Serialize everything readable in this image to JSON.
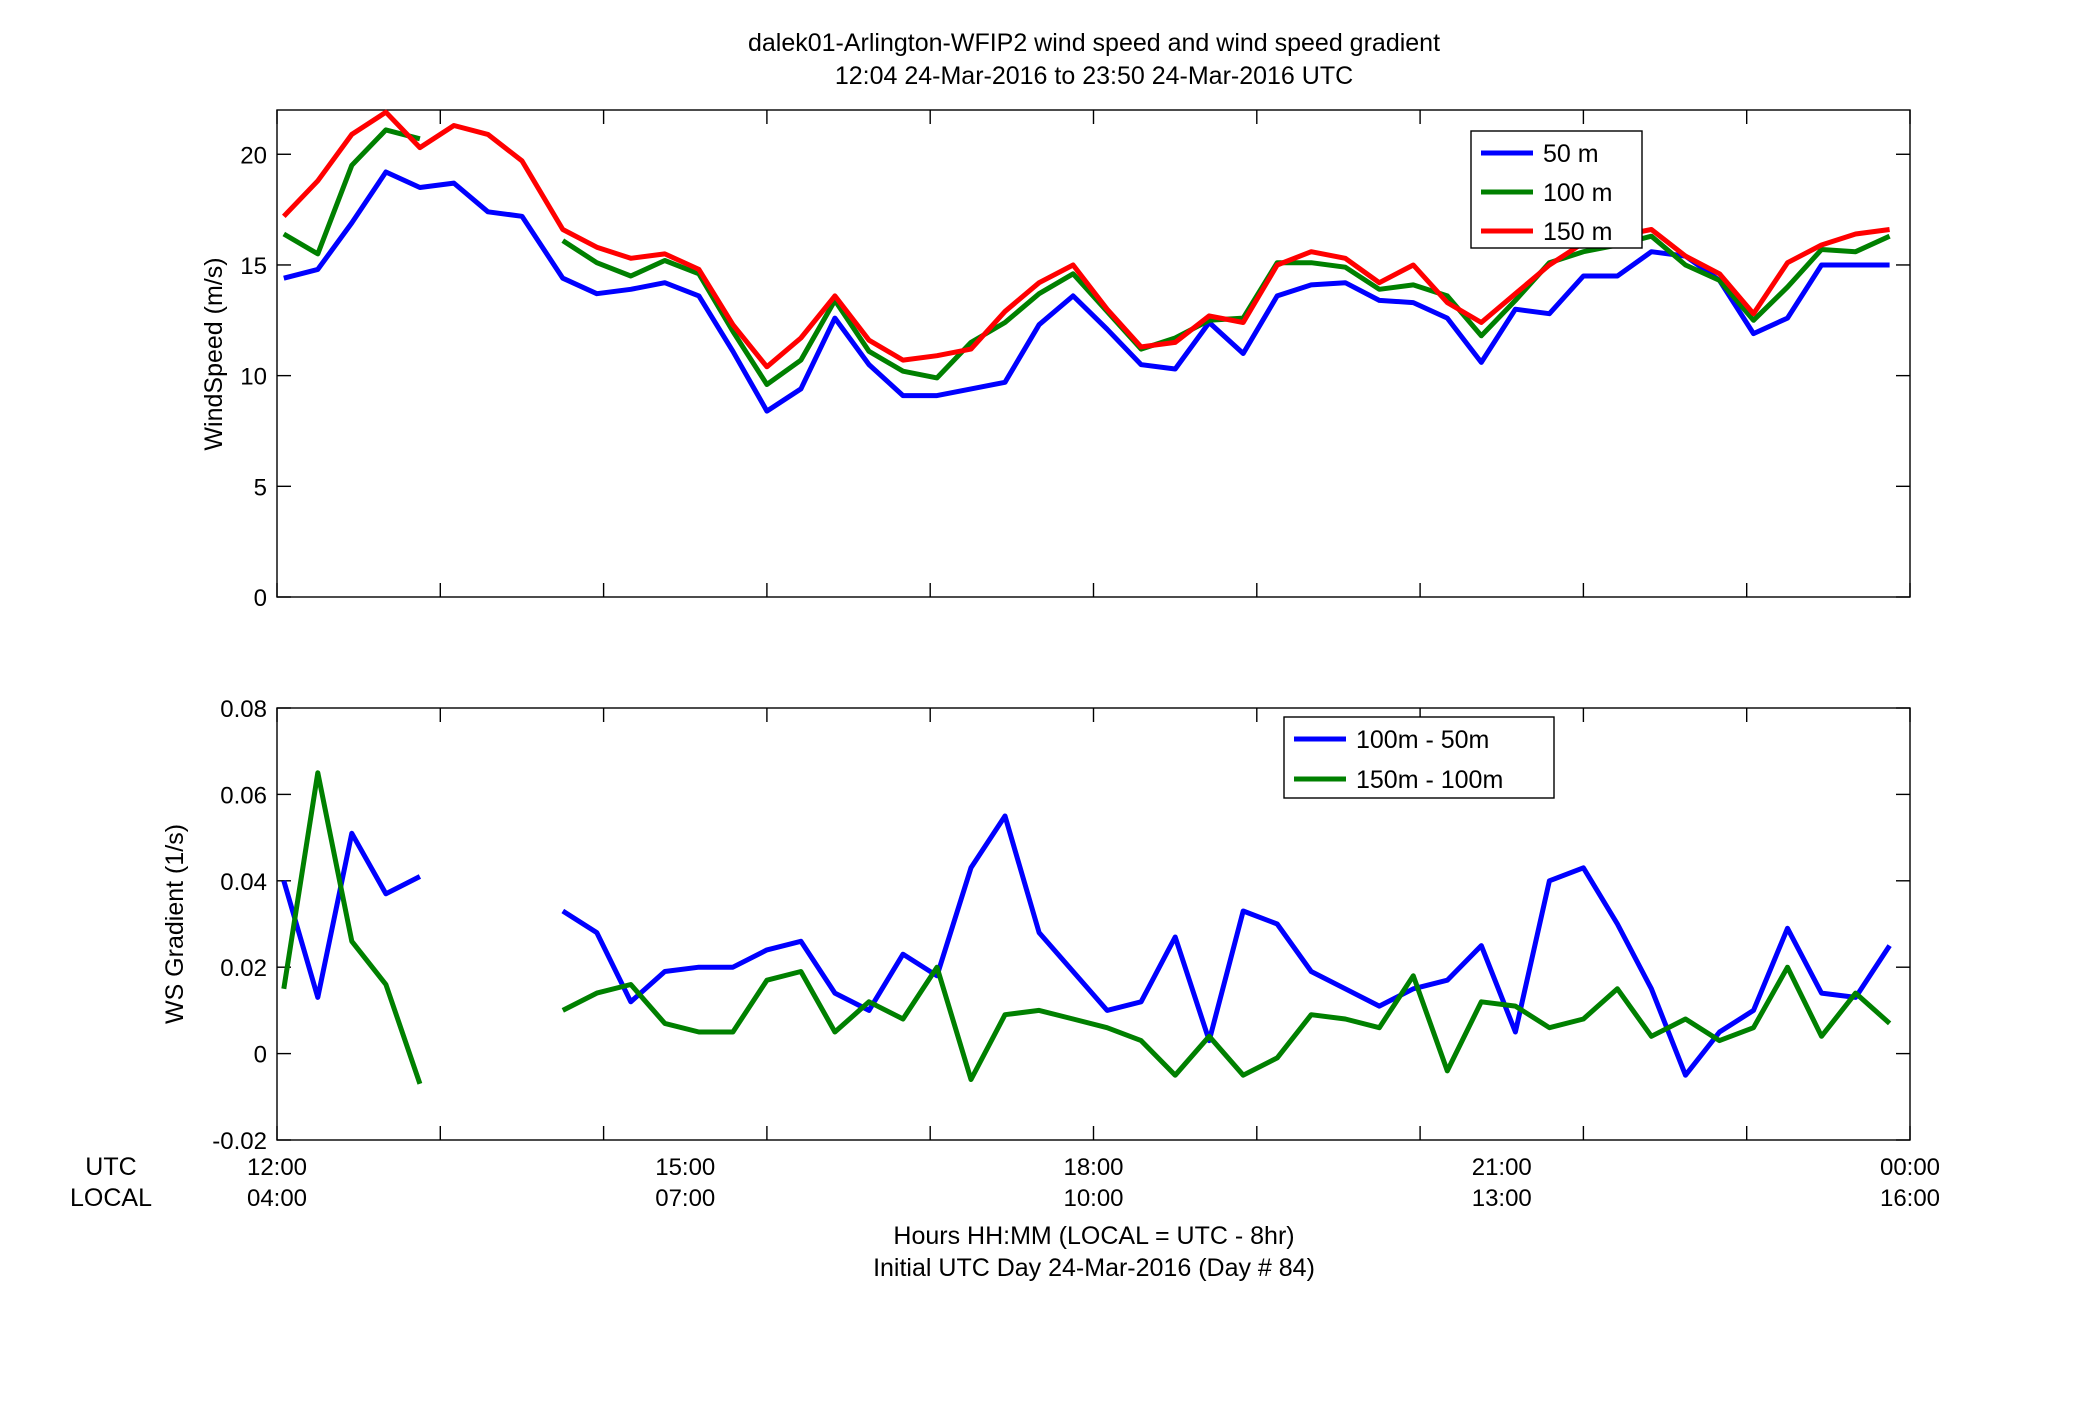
{
  "figure": {
    "title_line1": "dalek01-Arlington-WFIP2  wind speed and wind speed gradient",
    "title_line2": "12:04 24-Mar-2016 to 23:50 24-Mar-2016  UTC",
    "row_label_utc": "UTC",
    "row_label_local": "LOCAL",
    "xlabel_line1": "Hours HH:MM  (LOCAL = UTC - 8hr)",
    "xlabel_line2": "Initial UTC Day 24-Mar-2016 (Day # 84)",
    "utc_ticks": [
      "12:00",
      "15:00",
      "18:00",
      "21:00",
      "00:00"
    ],
    "local_ticks": [
      "04:00",
      "07:00",
      "10:00",
      "13:00",
      "16:00"
    ]
  },
  "chart_data": [
    {
      "type": "line",
      "ylabel": "WindSpeed (m/s)",
      "xlim": [
        12.0,
        24.0
      ],
      "ylim": [
        0,
        22
      ],
      "yticks": [
        0,
        5,
        10,
        15,
        20
      ],
      "ytick_labels": [
        "0",
        "5",
        "10",
        "15",
        "20"
      ],
      "xticks": [
        12,
        13.2,
        14.4,
        15.6,
        16.8,
        18,
        19.2,
        20.4,
        21.6,
        22.8,
        24
      ],
      "legend_position": "top-right",
      "x": [
        12.05,
        12.3,
        12.55,
        12.8,
        13.05,
        13.3,
        13.55,
        13.8,
        14.1,
        14.35,
        14.6,
        14.85,
        15.1,
        15.35,
        15.6,
        15.85,
        16.1,
        16.35,
        16.6,
        16.85,
        17.1,
        17.35,
        17.6,
        17.85,
        18.1,
        18.35,
        18.6,
        18.85,
        19.1,
        19.35,
        19.6,
        19.85,
        20.1,
        20.35,
        20.6,
        20.85,
        21.1,
        21.35,
        21.6,
        21.85,
        22.1,
        22.35,
        22.6,
        22.85,
        23.1,
        23.35,
        23.6,
        23.85
      ],
      "series": [
        {
          "name": "50 m",
          "color": "#0000ff",
          "values": [
            14.4,
            14.8,
            16.9,
            19.2,
            18.5,
            18.7,
            17.4,
            17.2,
            14.4,
            13.7,
            13.9,
            14.2,
            13.6,
            11.1,
            8.4,
            9.4,
            12.6,
            10.5,
            9.1,
            9.1,
            9.4,
            9.7,
            12.3,
            13.6,
            12.1,
            10.5,
            10.3,
            12.4,
            11.0,
            13.6,
            14.1,
            14.2,
            13.4,
            13.3,
            12.6,
            10.6,
            13.0,
            12.8,
            14.5,
            14.5,
            15.6,
            15.4,
            14.3,
            11.9,
            12.6,
            15.0,
            15.0,
            15.0
          ]
        },
        {
          "name": "100 m",
          "color": "#008000",
          "values": [
            16.4,
            15.5,
            19.5,
            21.1,
            20.7,
            null,
            null,
            null,
            16.1,
            15.1,
            14.5,
            15.2,
            14.6,
            12.0,
            9.6,
            10.7,
            13.4,
            11.1,
            10.2,
            9.9,
            11.5,
            12.4,
            13.7,
            14.6,
            12.9,
            11.2,
            11.7,
            12.5,
            12.6,
            15.1,
            15.1,
            14.9,
            13.9,
            14.1,
            13.6,
            11.8,
            13.4,
            15.1,
            15.6,
            15.9,
            16.3,
            15.0,
            14.3,
            12.5,
            14.0,
            15.7,
            15.6,
            16.3
          ]
        },
        {
          "name": "150 m",
          "color": "#ff0000",
          "values": [
            17.2,
            18.8,
            20.9,
            21.9,
            20.3,
            21.3,
            20.9,
            19.7,
            16.6,
            15.8,
            15.3,
            15.5,
            14.8,
            12.3,
            10.4,
            11.7,
            13.6,
            11.6,
            10.7,
            10.9,
            11.2,
            12.9,
            14.2,
            15.0,
            13.0,
            11.3,
            11.5,
            12.7,
            12.4,
            15.0,
            15.6,
            15.3,
            14.2,
            15.0,
            13.3,
            12.4,
            13.7,
            15.0,
            16.0,
            16.3,
            16.6,
            15.4,
            14.6,
            12.8,
            15.1,
            15.9,
            16.4,
            16.6
          ]
        }
      ]
    },
    {
      "type": "line",
      "ylabel": "WS Gradient (1/s)",
      "xlim": [
        12.0,
        24.0
      ],
      "ylim": [
        -0.02,
        0.08
      ],
      "yticks": [
        -0.02,
        0,
        0.02,
        0.04,
        0.06,
        0.08
      ],
      "ytick_labels": [
        "-0.02",
        "0",
        "0.02",
        "0.04",
        "0.06",
        "0.08"
      ],
      "xticks": [
        12,
        13.2,
        14.4,
        15.6,
        16.8,
        18,
        19.2,
        20.4,
        21.6,
        22.8,
        24
      ],
      "legend_position": "top-right",
      "x": [
        12.05,
        12.3,
        12.55,
        12.8,
        13.05,
        13.3,
        13.55,
        13.8,
        14.1,
        14.35,
        14.6,
        14.85,
        15.1,
        15.35,
        15.6,
        15.85,
        16.1,
        16.35,
        16.6,
        16.85,
        17.1,
        17.35,
        17.6,
        17.85,
        18.1,
        18.35,
        18.6,
        18.85,
        19.1,
        19.35,
        19.6,
        19.85,
        20.1,
        20.35,
        20.6,
        20.85,
        21.1,
        21.35,
        21.6,
        21.85,
        22.1,
        22.35,
        22.6,
        22.85,
        23.1,
        23.35,
        23.6,
        23.85
      ],
      "series": [
        {
          "name": "100m - 50m",
          "color": "#0000ff",
          "values": [
            0.04,
            0.013,
            0.051,
            0.037,
            0.041,
            null,
            null,
            null,
            0.033,
            0.028,
            0.012,
            0.019,
            0.02,
            0.02,
            0.024,
            0.026,
            0.014,
            0.01,
            0.023,
            0.018,
            0.043,
            0.055,
            0.028,
            0.019,
            0.01,
            0.012,
            0.027,
            0.003,
            0.033,
            0.03,
            0.019,
            0.015,
            0.011,
            0.015,
            0.017,
            0.025,
            0.005,
            0.04,
            0.043,
            0.03,
            0.015,
            -0.005,
            0.005,
            0.01,
            0.029,
            0.014,
            0.013,
            0.025
          ]
        },
        {
          "name": "150m - 100m",
          "color": "#008000",
          "values": [
            0.015,
            0.065,
            0.026,
            0.016,
            -0.007,
            null,
            null,
            null,
            0.01,
            0.014,
            0.016,
            0.007,
            0.005,
            0.005,
            0.017,
            0.019,
            0.005,
            0.012,
            0.008,
            0.02,
            -0.006,
            0.009,
            0.01,
            0.008,
            0.006,
            0.003,
            -0.005,
            0.004,
            -0.005,
            -0.001,
            0.009,
            0.008,
            0.006,
            0.018,
            -0.004,
            0.012,
            0.011,
            0.006,
            0.008,
            0.015,
            0.004,
            0.008,
            0.003,
            0.006,
            0.02,
            0.004,
            0.014,
            0.007
          ]
        }
      ]
    }
  ]
}
